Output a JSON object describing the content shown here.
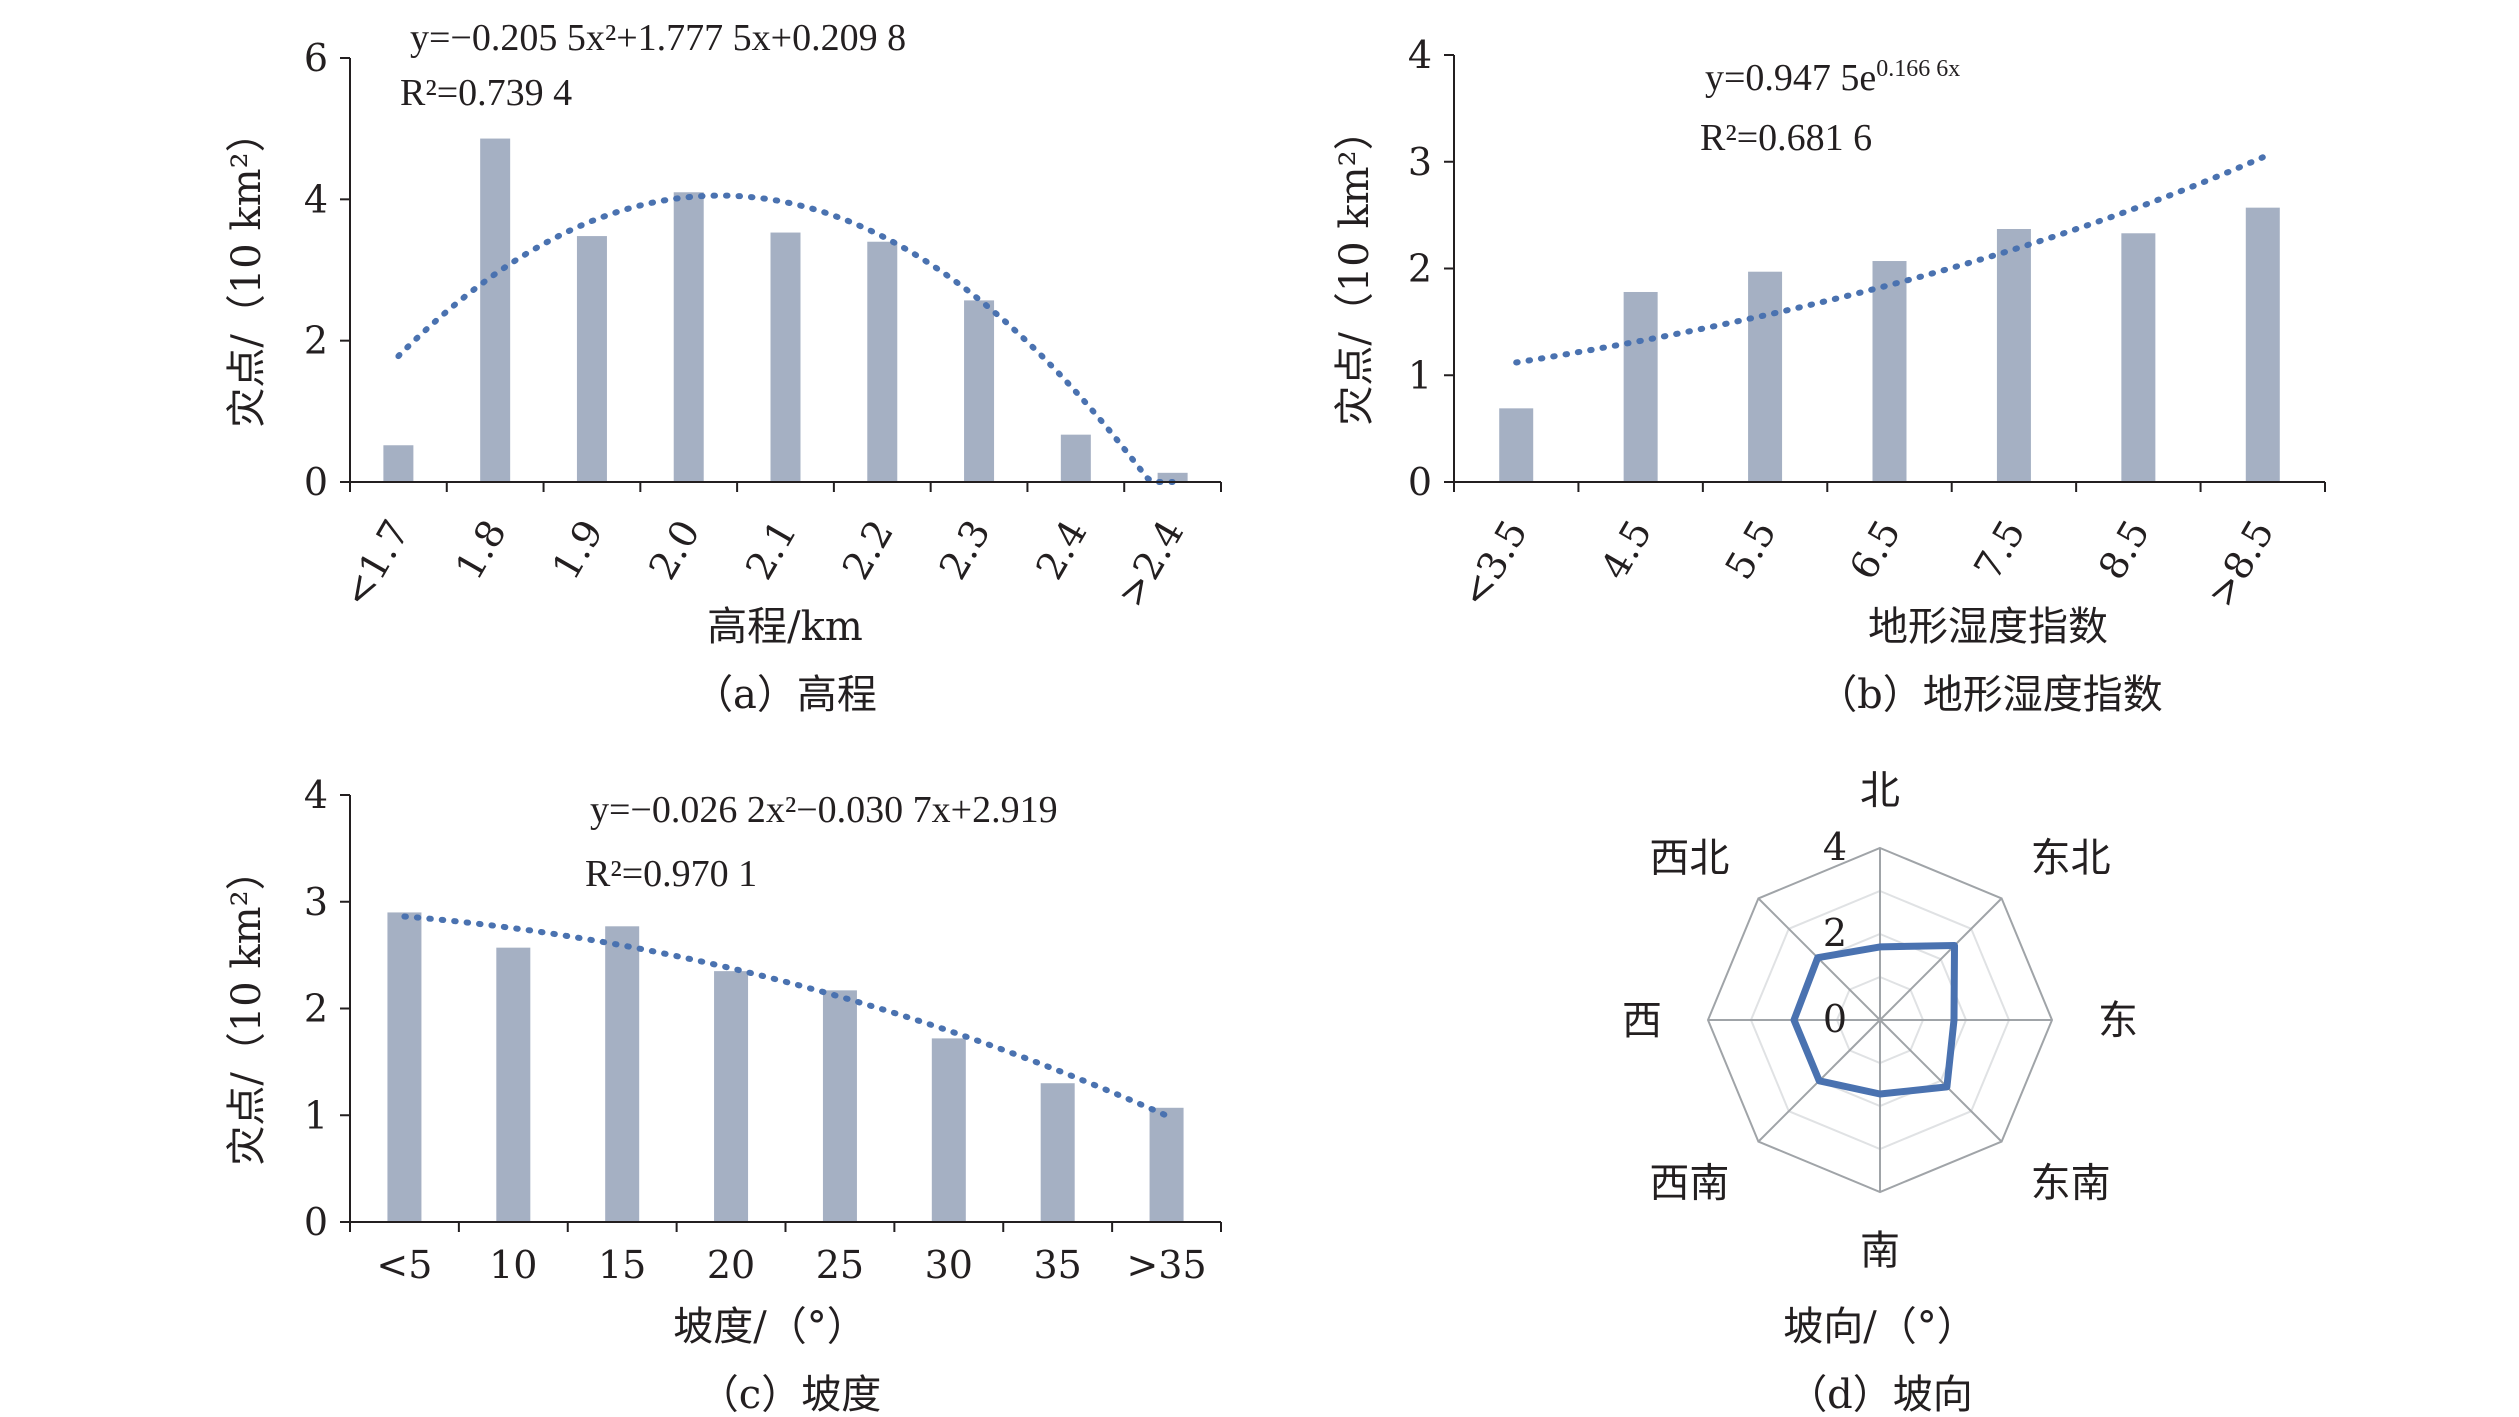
{
  "chart_data": [
    {
      "id": "a",
      "type": "bar",
      "categories": [
        "<1.7",
        "1.8",
        "1.9",
        "2.0",
        "2.1",
        "2.2",
        "2.3",
        "2.4",
        ">2.4"
      ],
      "values": [
        0.52,
        4.86,
        3.48,
        4.1,
        3.53,
        3.4,
        2.57,
        0.67,
        0.13
      ],
      "xlabel": "高程/km",
      "ylabel": "灾点/（10 km²）",
      "ylim": [
        0,
        6
      ],
      "yticks": [
        "0",
        "2",
        "4",
        "6"
      ],
      "caption": "（a）高程",
      "trend": {
        "type": "polynomial",
        "a": -0.2055,
        "b": 1.7775,
        "c": 0.2098
      },
      "equation": "y=−0.205 5x²+1.777 5x+0.209 8",
      "r2": "R²=0.739 4"
    },
    {
      "id": "b",
      "type": "bar",
      "categories": [
        "<3.5",
        "4.5",
        "5.5",
        "6.5",
        "7.5",
        "8.5",
        ">8.5"
      ],
      "values": [
        0.69,
        1.78,
        1.97,
        2.07,
        2.37,
        2.33,
        2.57
      ],
      "xlabel": "地形湿度指数",
      "ylabel": "灾点/（10 km²）",
      "ylim": [
        0,
        4
      ],
      "yticks": [
        "0",
        "1",
        "2",
        "3",
        "4"
      ],
      "caption": "（b）地形湿度指数",
      "trend": {
        "type": "exponential",
        "a": 0.9475,
        "b": 0.1666
      },
      "equation": "y=0.947 5e^0.166 6x",
      "r2": "R²=0.681 6"
    },
    {
      "id": "c",
      "type": "bar",
      "categories": [
        "<5",
        "10",
        "15",
        "20",
        "25",
        "30",
        "35",
        ">35"
      ],
      "values": [
        2.9,
        2.57,
        2.77,
        2.35,
        2.17,
        1.72,
        1.3,
        1.07
      ],
      "xlabel": "坡度/（°）",
      "ylabel": "灾点/（10 km²）",
      "ylim": [
        0,
        4
      ],
      "yticks": [
        "0",
        "1",
        "2",
        "3",
        "4"
      ],
      "caption": "（c）坡度",
      "trend": {
        "type": "polynomial",
        "a": -0.0262,
        "b": -0.0307,
        "c": 2.919
      },
      "equation": "y=−0.026 2x²−0.030 7x+2.919",
      "r2": "R²=0.970 1"
    },
    {
      "id": "d",
      "type": "radar",
      "categories": [
        "北",
        "东北",
        "东",
        "东南",
        "南",
        "西南",
        "西",
        "西北"
      ],
      "values": [
        1.7,
        2.45,
        1.72,
        2.2,
        1.72,
        2.0,
        2.0,
        2.05
      ],
      "rlim": [
        0,
        4
      ],
      "rticks": [
        "0",
        "2",
        "4"
      ],
      "xlabel": "坡向/（°）",
      "caption": "（d）坡向"
    }
  ]
}
